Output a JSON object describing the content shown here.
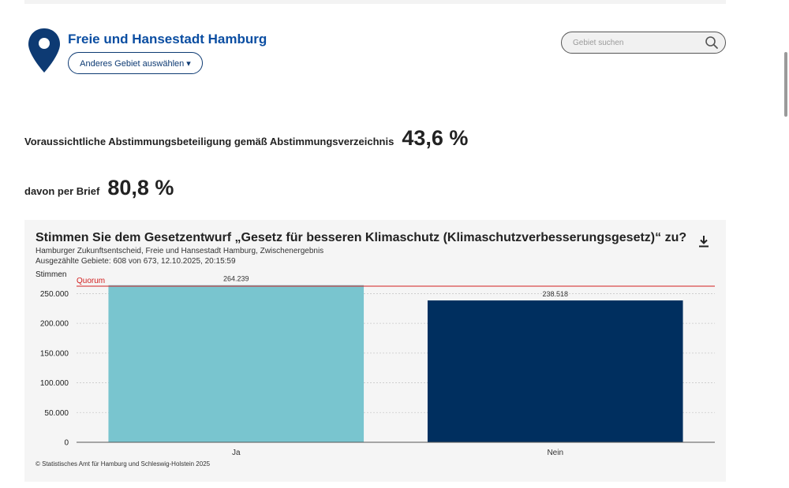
{
  "header": {
    "region_name": "Freie und Hansestadt Hamburg",
    "area_button_label": "Anderes Gebiet auswählen ▾",
    "search_placeholder": "Gebiet suchen",
    "pin_color": "#0d3a73"
  },
  "stats": {
    "turnout_label": "Voraussichtliche Abstimmungsbeteiligung gemäß Abstimmungsverzeichnis",
    "turnout_value": "43,6 %",
    "mail_label": "davon per Brief",
    "mail_value": "80,8 %"
  },
  "chart": {
    "title": "Stimmen Sie dem Gesetzentwurf „Gesetz für besseren Klimaschutz (Klimaschutzverbesserungsgesetz)“ zu?",
    "subtitle": "Hamburger Zukunftsentscheid, Freie und Hansestadt Hamburg, Zwischenergebnis",
    "counted": "Ausgezählte Gebiete: 608 von 673, 12.10.2025, 20:15:59",
    "footer": "© Statistisches Amt für Hamburg und Schleswig-Holstein 2025",
    "download_icon": "download-icon"
  },
  "chart_data": {
    "type": "bar",
    "ylabel": "Stimmen",
    "categories": [
      "Ja",
      "Nein"
    ],
    "values": [
      264239,
      238518
    ],
    "value_labels": [
      "264.239",
      "238.518"
    ],
    "colors": [
      "#79c5cf",
      "#002f5f"
    ],
    "ylim": [
      0,
      262500
    ],
    "yticks": [
      0,
      50000,
      100000,
      150000,
      200000,
      250000
    ],
    "ytick_labels": [
      "0",
      "50.000",
      "100.000",
      "150.000",
      "200.000",
      "250.000"
    ],
    "quorum_label": "Quorum",
    "quorum_value": 262500,
    "quorum_color": "#d32020",
    "grid": true
  }
}
